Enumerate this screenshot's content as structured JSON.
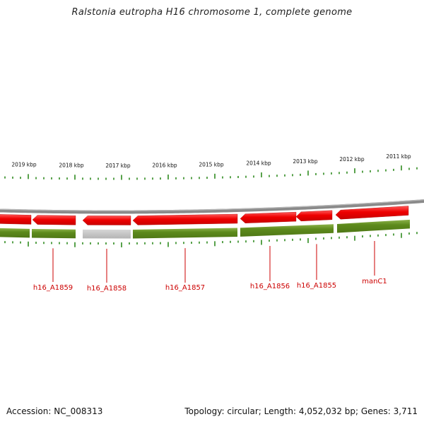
{
  "title": "Ralstonia eutropha H16 chromosome 1, complete genome",
  "footer": {
    "accession": "Accession: NC_008313",
    "topology": "Topology: circular; Length: 4,052,032 bp; Genes: 3,711"
  },
  "colors": {
    "backbone": "#8a8a8a",
    "gene_arrow": "#ee0000",
    "gene_arrow_highlight": "#ff6060",
    "cds_band": "#5d8a1c",
    "cds_band_highlight": "#8db34a",
    "gap_band": "#c2c2c2",
    "tick": "#2f8a1f",
    "label_line": "#cc0000",
    "label_text": "#cc0000"
  },
  "scale_labels": [
    "2019 kbp",
    "2018 kbp",
    "2017 kbp",
    "2016 kbp",
    "2015 kbp",
    "2014 kbp",
    "2013 kbp",
    "2012 kbp",
    "2011 kbp"
  ],
  "genes": [
    {
      "name": "h16_A1859",
      "strand": "-"
    },
    {
      "name": "h16_A1858",
      "strand": "-"
    },
    {
      "name": "h16_A1857",
      "strand": "-"
    },
    {
      "name": "h16_A1856",
      "strand": "-"
    },
    {
      "name": "h16_A1855",
      "strand": "-"
    },
    {
      "name": "manC1",
      "strand": "-"
    }
  ]
}
